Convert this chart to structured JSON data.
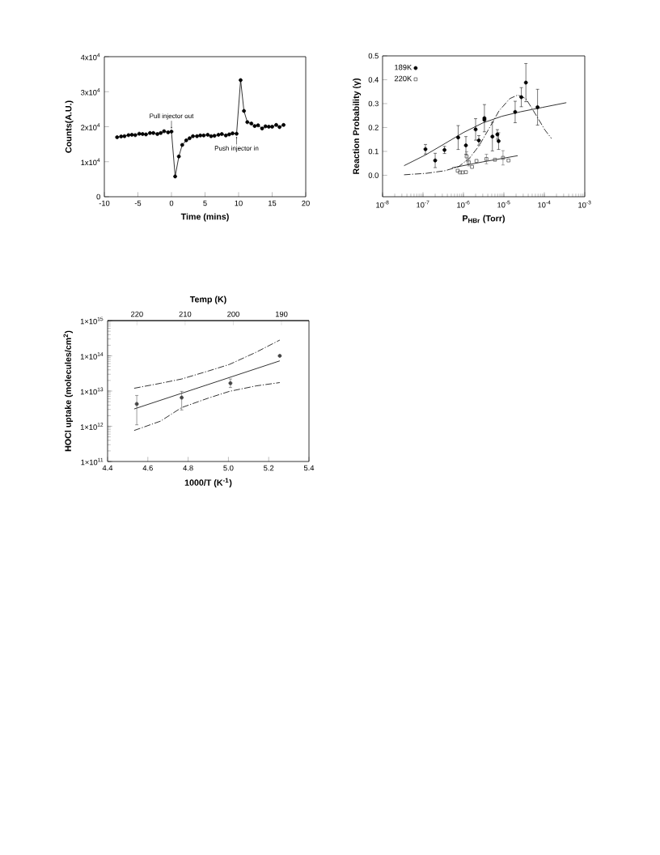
{
  "chart_data": [
    {
      "type": "line",
      "xlabel": "Time (mins)",
      "ylabel": "Counts(A.U.)",
      "color": "#000000",
      "marker": "circle",
      "x": [
        -8.1,
        -7.5,
        -7.0,
        -6.4,
        -5.9,
        -5.4,
        -4.8,
        -4.3,
        -3.8,
        -3.2,
        -2.7,
        -2.1,
        -1.6,
        -1.1,
        -0.5,
        0.0,
        0.55,
        1.1,
        1.6,
        2.2,
        2.7,
        3.2,
        3.8,
        4.3,
        4.8,
        5.4,
        5.9,
        6.4,
        7.0,
        7.5,
        8.1,
        8.6,
        9.1,
        9.7,
        10.3,
        10.8,
        11.3,
        11.9,
        12.4,
        12.9,
        13.5,
        14.0,
        14.5,
        15.0,
        15.6,
        16.1,
        16.7
      ],
      "values": [
        17000,
        17200,
        17300,
        17600,
        17700,
        17600,
        18000,
        17900,
        17800,
        18200,
        18200,
        17900,
        18200,
        18700,
        18400,
        18600,
        5800,
        11500,
        14800,
        16100,
        16700,
        17300,
        17300,
        17500,
        17500,
        17700,
        17300,
        17400,
        17700,
        17900,
        17500,
        17800,
        18100,
        18000,
        33300,
        24500,
        21300,
        20900,
        20200,
        20400,
        19500,
        20100,
        20000,
        20000,
        20500,
        19900,
        20500
      ],
      "xlim": [
        -10,
        20
      ],
      "xticks": [
        -10,
        -5,
        0,
        5,
        10,
        15,
        20
      ],
      "ylim": [
        0,
        40000
      ],
      "yticks": [
        0,
        {
          "value": 10000,
          "label": "1x10$^{4}$"
        },
        {
          "value": 20000,
          "label": "2x10$^{4}$"
        },
        {
          "value": 30000,
          "label": "3x10$^{4}$"
        },
        {
          "value": 40000,
          "label": "4x10$^{4}$"
        }
      ],
      "annotations": [
        {
          "text": "Pull injector out",
          "x": 0.0,
          "y": 18600
        },
        {
          "text": "Push injector in",
          "x": 9.7,
          "y": 18000
        }
      ]
    },
    {
      "type": "scatter",
      "xlabel": "P$_{HBr}$ (Torr)",
      "ylabel": "Reaction Probability (γ)",
      "log": "x",
      "legend": "top left",
      "xlim": [
        1e-08,
        0.001
      ],
      "xticks": [
        {
          "value": 1e-08,
          "label": "10$^{-8}$"
        },
        {
          "value": 1e-07,
          "label": "10$^{-7}$"
        },
        {
          "value": 1e-06,
          "label": "10$^{-6}$"
        },
        {
          "value": 1e-05,
          "label": "10$^{-5}$"
        },
        {
          "value": 0.0001,
          "label": "10$^{-4}$"
        },
        {
          "value": 0.001,
          "label": "10$^{-3}$"
        }
      ],
      "ylim": [
        -0.09,
        0.5
      ],
      "yticks": [
        {
          "value": 0,
          "label": "0.0"
        },
        0.1,
        0.2,
        0.3,
        0.4,
        0.5
      ],
      "series": [
        {
          "name": "189K",
          "type": "scatter",
          "marker": "circle",
          "color": "#000000",
          "x": [
            1.15e-07,
            2e-07,
            3.4e-07,
            7.4e-07,
            1.15e-06,
            2e-06,
            2.4e-06,
            3.3e-06,
            3.3e-06,
            5.2e-06,
            6.9e-06,
            7.4e-06,
            1.9e-05,
            2.7e-05,
            3.5e-05,
            6.8e-05
          ],
          "values": [
            0.109,
            0.062,
            0.106,
            0.158,
            0.125,
            0.192,
            0.146,
            0.239,
            0.232,
            0.162,
            0.171,
            0.143,
            0.265,
            0.327,
            0.388,
            0.285
          ],
          "errors": [
            0.02,
            0.03,
            0.015,
            0.05,
            0.037,
            0.045,
            0.02,
            0.057,
            null,
            0.06,
            0.02,
            0.035,
            0.045,
            0.04,
            0.08,
            0.075
          ]
        },
        {
          "name": "220K",
          "type": "scatter",
          "marker": "square",
          "color": "#555555",
          "x": [
            7.2e-07,
            8.2e-07,
            9.5e-07,
            1.15e-06,
            1.2e-06,
            1.36e-06,
            1.63e-06,
            2.1e-06,
            3.7e-06,
            6e-06,
            9.5e-06,
            1.3e-05
          ],
          "values": [
            0.019,
            0.012,
            0.012,
            0.013,
            0.079,
            0.054,
            0.035,
            0.06,
            0.068,
            0.065,
            0.073,
            0.062
          ],
          "errors": [
            null,
            null,
            null,
            null,
            0.02,
            0.015,
            null,
            null,
            0.02,
            null,
            0.03,
            null
          ]
        },
        {
          "type": "line",
          "line_style": "solid",
          "color": "#000000",
          "x": [
            3.4e-08,
            1.15e-07,
            3.5e-07,
            1e-06,
            3e-06,
            8.9e-06,
            2.6e-05,
            8.9e-05,
            0.00035
          ],
          "values": [
            0.04,
            0.085,
            0.133,
            0.179,
            0.219,
            0.247,
            0.266,
            0.284,
            0.304
          ]
        },
        {
          "type": "line",
          "line_style": "dashed",
          "color": "#000000",
          "x": [
            3.4e-08,
            1.2e-07,
            3.5e-07,
            7.6e-07,
            1.4e-06,
            2.4e-06,
            4.1e-06,
            7.6e-06,
            1.4e-05,
            2.2e-05,
            3.5e-05,
            6.5e-05,
            0.000103,
            0.00015
          ],
          "values": [
            0.002,
            0.008,
            0.019,
            0.036,
            0.071,
            0.122,
            0.19,
            0.27,
            0.321,
            0.336,
            0.321,
            0.247,
            0.19,
            0.154
          ]
        },
        {
          "type": "line",
          "line_style": "solid",
          "color": "#000000",
          "x": [
            5.2e-07,
            3e-06,
            2.2e-05
          ],
          "values": [
            0.031,
            0.056,
            0.082
          ]
        }
      ]
    },
    {
      "type": "scatter",
      "xlabel": "1000/T (K$^{-1}$)",
      "ylabel": "HOCl uptake (molecules/cm$^{2}$)",
      "x2label": "Temp (K)",
      "log": "y",
      "xlim": [
        4.4,
        5.4
      ],
      "xticks": [
        4.4,
        4.6,
        4.8,
        {
          "value": 5.0,
          "label": "5.0"
        },
        5.2,
        5.4
      ],
      "x2lim": [
        226.1,
        184.3
      ],
      "x2ticks": [
        220,
        210,
        200,
        190
      ],
      "ylim": [
        100000000000.0,
        1000000000000000.0
      ],
      "yticks": [
        {
          "value": 100000000000.0,
          "label": "1×10$^{11}$"
        },
        {
          "value": 1000000000000.0,
          "label": "1×10$^{12}$"
        },
        {
          "value": 10000000000000.0,
          "label": "1×10$^{13}$"
        },
        {
          "value": 100000000000000.0,
          "label": "1×10$^{14}$"
        },
        {
          "value": 1000000000000000.0,
          "label": "1×10$^{15}$"
        }
      ],
      "series": [
        {
          "type": "scatter",
          "marker": "circle",
          "color": "#444444",
          "x": [
            4.545,
            4.768,
            5.01,
            5.255
          ],
          "values": [
            4300000000000.0,
            6500000000000.0,
            16700000000000.0,
            100000000000000.0
          ],
          "errors": [
            [
              1100000000000.0,
              7500000000000.0
            ],
            [
              2900000000000.0,
              9800000000000.0
            ],
            [
              12600000000000.0,
              22000000000000.0
            ],
            null
          ]
        },
        {
          "type": "line",
          "line_style": "solid",
          "color": "#000000",
          "x": [
            4.532,
            5.255
          ],
          "values": [
            3100000000000.0,
            72000000000000.0
          ]
        },
        {
          "type": "line",
          "line_style": "dashed",
          "color": "#000000",
          "x": [
            4.532,
            4.663,
            4.768,
            4.9,
            5.005,
            5.137,
            5.255
          ],
          "values": [
            12000000000000.0,
            16600000000000.0,
            22000000000000.0,
            37000000000000.0,
            57000000000000.0,
            126000000000000.0,
            280000000000000.0
          ]
        },
        {
          "type": "line",
          "line_style": "dashed",
          "color": "#000000",
          "x": [
            4.532,
            4.663,
            4.768,
            4.9,
            5.005,
            5.137,
            5.255
          ],
          "values": [
            760000000000.0,
            1400000000000.0,
            3400000000000.0,
            6300000000000.0,
            9800000000000.0,
            14000000000000.0,
            17400000000000.0
          ]
        }
      ]
    }
  ]
}
